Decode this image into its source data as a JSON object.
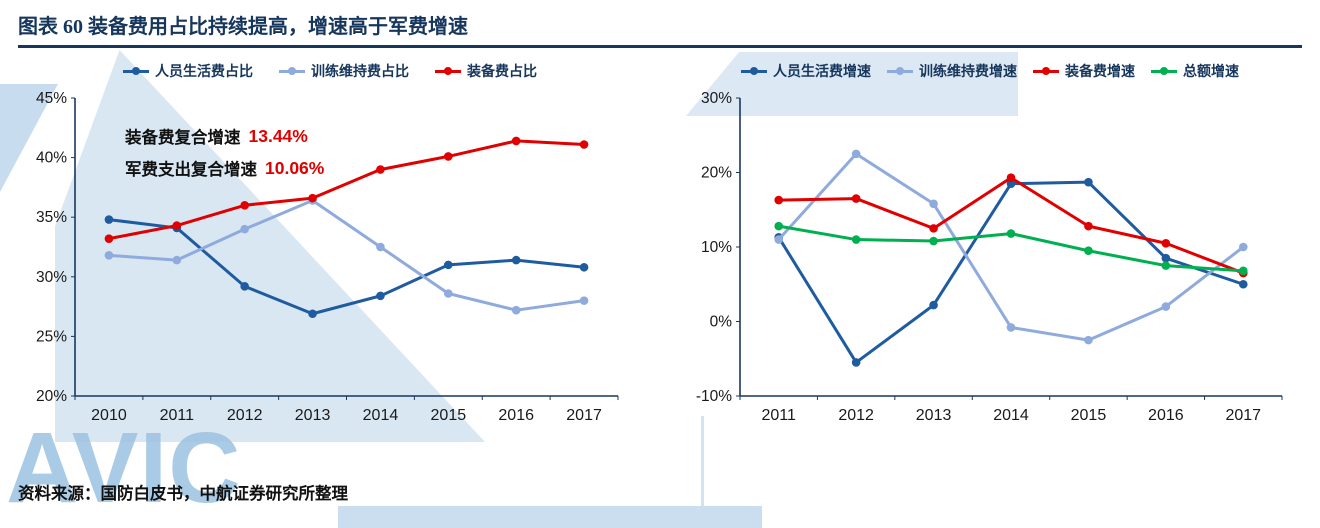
{
  "page": {
    "title": "图表 60 装备费用占比持续提高，增速高于军费增速",
    "source": "资料来源：国防白皮书，中航证券研究所整理",
    "watermark_text": "AVIC",
    "accent_color": "#16365C",
    "watermark_color": "#B9D3EA"
  },
  "chart_data": [
    {
      "type": "line",
      "title": "",
      "categories": [
        "2010",
        "2011",
        "2012",
        "2013",
        "2014",
        "2015",
        "2016",
        "2017"
      ],
      "series": [
        {
          "name": "人员生活费占比",
          "color": "#1E5C9F",
          "values": [
            34.8,
            34.1,
            29.2,
            26.9,
            28.4,
            31.0,
            31.4,
            30.8
          ]
        },
        {
          "name": "训练维持费占比",
          "color": "#8FAADC",
          "values": [
            31.8,
            31.4,
            34.0,
            36.4,
            32.5,
            28.6,
            27.2,
            28.0
          ]
        },
        {
          "name": "装备费占比",
          "color": "#E00000",
          "values": [
            33.2,
            34.3,
            36.0,
            36.6,
            39.0,
            40.1,
            41.4,
            41.1
          ]
        }
      ],
      "ylim": [
        20,
        45
      ],
      "yticks": [
        20,
        25,
        30,
        35,
        40,
        45
      ],
      "tick_suffix": "%",
      "xlabel": "",
      "ylabel": "",
      "grid": false,
      "legend_position": "top",
      "annotations": [
        {
          "label": "装备费复合增速",
          "value": "13.44%"
        },
        {
          "label": "军费支出复合增速",
          "value": "10.06%"
        }
      ]
    },
    {
      "type": "line",
      "title": "",
      "categories": [
        "2011",
        "2012",
        "2013",
        "2014",
        "2015",
        "2016",
        "2017"
      ],
      "series": [
        {
          "name": "人员生活费增速",
          "color": "#1E5C9F",
          "values": [
            11.3,
            -5.5,
            2.2,
            18.5,
            18.7,
            8.5,
            5.0
          ]
        },
        {
          "name": "训练维持费增速",
          "color": "#8FAADC",
          "values": [
            11.0,
            22.5,
            15.8,
            -0.8,
            -2.5,
            2.0,
            10.0
          ]
        },
        {
          "name": "装备费增速",
          "color": "#E00000",
          "values": [
            16.3,
            16.5,
            12.5,
            19.3,
            12.8,
            10.5,
            6.5
          ]
        },
        {
          "name": "总额增速",
          "color": "#00B050",
          "values": [
            12.8,
            11.0,
            10.8,
            11.8,
            9.5,
            7.5,
            6.8
          ]
        }
      ],
      "ylim": [
        -10,
        30
      ],
      "yticks": [
        -10,
        0,
        10,
        20,
        30
      ],
      "tick_suffix": "%",
      "xlabel": "",
      "ylabel": "",
      "grid": false,
      "legend_position": "top",
      "annotations": []
    }
  ]
}
